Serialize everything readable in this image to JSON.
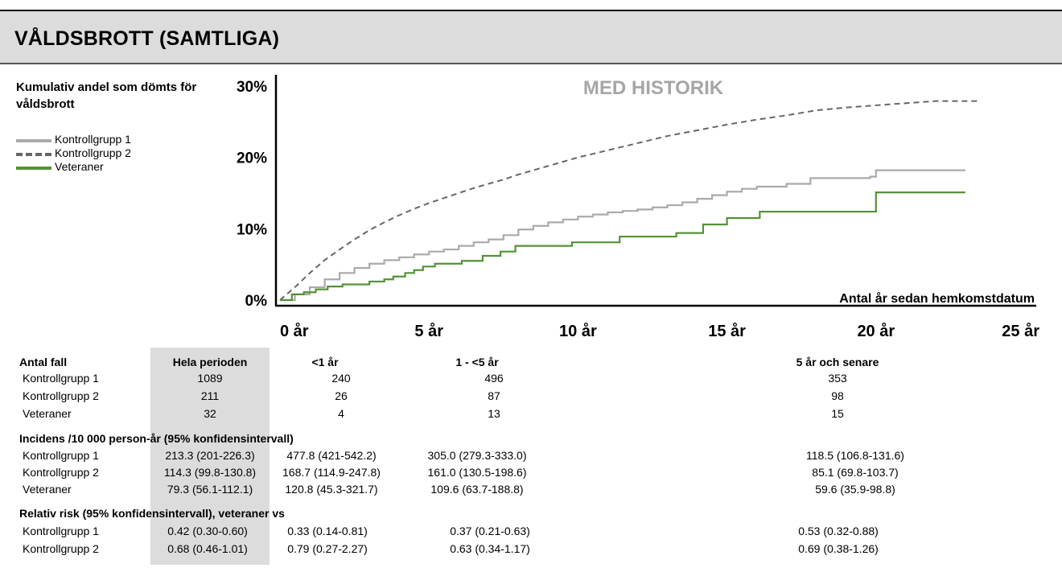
{
  "banner": {
    "title": "VÅLDSBROTT (SAMTLIGA)"
  },
  "chart_data": {
    "type": "line",
    "title": "MED HISTORIK",
    "side_title": "Kumulativ andel som dömts för våldsbrott",
    "xlabel": "Antal år sedan hemkomstdatum",
    "ylabel": "",
    "xlim": [
      0,
      25
    ],
    "ylim": [
      0,
      30
    ],
    "x_ticks": [
      "0 år",
      "5 år",
      "10 år",
      "15 år",
      "20 år",
      "25 år"
    ],
    "y_ticks": [
      "0%",
      "10%",
      "20%",
      "30%"
    ],
    "grid": false,
    "legend_position": "left",
    "series": [
      {
        "name": "Kontrollgrupp 1",
        "color": "#aaaaaa",
        "style": "solid",
        "step": true,
        "points": [
          [
            0,
            0
          ],
          [
            0.5,
            0.8
          ],
          [
            1,
            1.8
          ],
          [
            1.5,
            2.9
          ],
          [
            2,
            3.8
          ],
          [
            2.5,
            4.5
          ],
          [
            3,
            5.1
          ],
          [
            3.5,
            5.6
          ],
          [
            4,
            6.0
          ],
          [
            4.5,
            6.4
          ],
          [
            5,
            6.8
          ],
          [
            5.5,
            7.1
          ],
          [
            6,
            7.6
          ],
          [
            6.5,
            8.1
          ],
          [
            7,
            8.5
          ],
          [
            7.5,
            9.1
          ],
          [
            8,
            9.9
          ],
          [
            8.5,
            10.4
          ],
          [
            9,
            10.9
          ],
          [
            9.5,
            11.3
          ],
          [
            10,
            11.7
          ],
          [
            10.5,
            12.0
          ],
          [
            11,
            12.3
          ],
          [
            11.5,
            12.5
          ],
          [
            12,
            12.7
          ],
          [
            12.5,
            13.0
          ],
          [
            13,
            13.3
          ],
          [
            13.5,
            13.7
          ],
          [
            14,
            14.2
          ],
          [
            14.5,
            14.7
          ],
          [
            15,
            15.2
          ],
          [
            15.5,
            15.6
          ],
          [
            16,
            15.9
          ],
          [
            17,
            16.3
          ],
          [
            17.8,
            17.1
          ],
          [
            19.8,
            17.3
          ],
          [
            20,
            18.2
          ],
          [
            23,
            18.2
          ]
        ]
      },
      {
        "name": "Kontrollgrupp 2",
        "color": "#666666",
        "style": "dashed",
        "step": false,
        "points": [
          [
            0,
            0
          ],
          [
            0.5,
            1.8
          ],
          [
            1,
            3.8
          ],
          [
            1.5,
            5.6
          ],
          [
            2,
            7.1
          ],
          [
            2.5,
            8.5
          ],
          [
            3,
            9.8
          ],
          [
            3.5,
            10.9
          ],
          [
            4,
            11.9
          ],
          [
            4.5,
            12.8
          ],
          [
            5,
            13.6
          ],
          [
            5.5,
            14.3
          ],
          [
            6,
            15.0
          ],
          [
            6.5,
            15.7
          ],
          [
            7,
            16.3
          ],
          [
            7.5,
            16.9
          ],
          [
            8,
            17.6
          ],
          [
            8.5,
            18.2
          ],
          [
            9,
            18.8
          ],
          [
            9.5,
            19.4
          ],
          [
            10,
            20.0
          ],
          [
            11,
            21.0
          ],
          [
            12,
            22.0
          ],
          [
            13,
            23.0
          ],
          [
            14,
            23.8
          ],
          [
            15,
            24.6
          ],
          [
            16,
            25.3
          ],
          [
            17,
            25.9
          ],
          [
            18,
            26.6
          ],
          [
            19,
            27.0
          ],
          [
            20,
            27.3
          ],
          [
            21,
            27.6
          ],
          [
            22,
            27.9
          ],
          [
            23.5,
            27.9
          ]
        ]
      },
      {
        "name": "Veteraner",
        "color": "#549236",
        "style": "solid",
        "step": true,
        "points": [
          [
            0,
            0
          ],
          [
            0.4,
            0.8
          ],
          [
            0.8,
            1.1
          ],
          [
            1.2,
            1.5
          ],
          [
            1.6,
            1.9
          ],
          [
            2.1,
            2.2
          ],
          [
            3,
            2.6
          ],
          [
            3.5,
            2.9
          ],
          [
            3.8,
            3.3
          ],
          [
            4.2,
            3.8
          ],
          [
            4.5,
            4.2
          ],
          [
            4.8,
            4.7
          ],
          [
            5.2,
            5.1
          ],
          [
            6.1,
            5.5
          ],
          [
            6.8,
            6.2
          ],
          [
            7.4,
            6.8
          ],
          [
            7.9,
            7.6
          ],
          [
            9.8,
            8.1
          ],
          [
            11.4,
            8.9
          ],
          [
            13.3,
            9.4
          ],
          [
            14.2,
            10.6
          ],
          [
            15,
            11.5
          ],
          [
            16.1,
            12.4
          ],
          [
            20,
            15.1
          ],
          [
            23,
            15.1
          ]
        ]
      }
    ]
  },
  "table": {
    "header": [
      "Antal fall",
      "Hela perioden",
      "<1 år",
      "1 - <5 år",
      "5 år och senare"
    ],
    "counts": [
      [
        "Kontrollgrupp 1",
        "1089",
        "240",
        "496",
        "353"
      ],
      [
        "Kontrollgrupp 2",
        "211",
        "26",
        "87",
        "98"
      ],
      [
        "Veteraner",
        "32",
        "4",
        "13",
        "15"
      ]
    ],
    "incidence_title": "Incidens /10 000 person-år (95% konfidensintervall)",
    "incidence": [
      [
        "Kontrollgrupp 1",
        "213.3 (201-226.3)",
        "477.8 (421-542.2)",
        "305.0 (279.3-333.0)",
        "118.5 (106.8-131.6)"
      ],
      [
        "Kontrollgrupp 2",
        "114.3 (99.8-130.8)",
        "168.7 (114.9-247.8)",
        "161.0 (130.5-198.6)",
        "85.1 (69.8-103.7)"
      ],
      [
        "Veteraner",
        "79.3 (56.1-112.1)",
        "120.8 (45.3-321.7)",
        "109.6 (63.7-188.8)",
        "59.6 (35.9-98.8)"
      ]
    ],
    "rr_title": "Relativ risk (95% konfidensintervall), veteraner vs",
    "rr": [
      [
        "Kontrollgrupp 1",
        "0.42 (0.30-0.60)",
        "0.33 (0.14-0.81)",
        "0.37 (0.21-0.63)",
        "0.53 (0.32-0.88)"
      ],
      [
        "Kontrollgrupp 2",
        "0.68 (0.46-1.01)",
        "0.79 (0.27-2.27)",
        "0.63 (0.34-1.17)",
        "0.69 (0.38-1.26)"
      ]
    ]
  }
}
